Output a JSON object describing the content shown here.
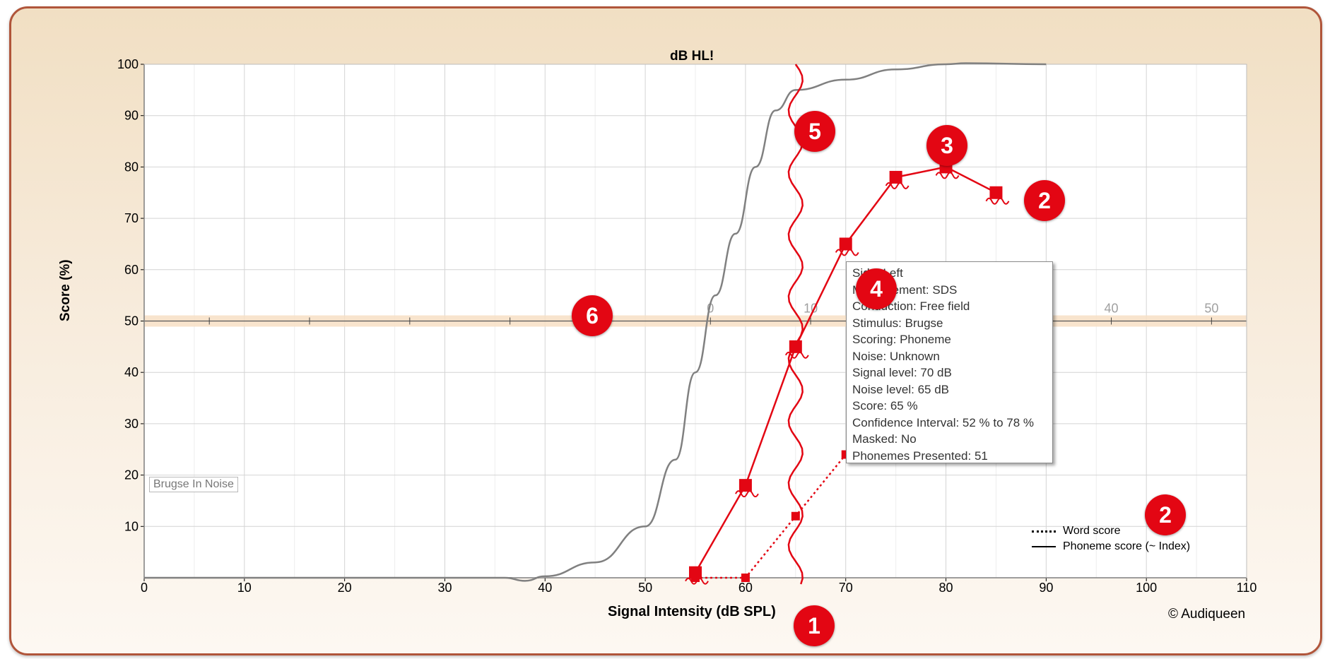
{
  "chart_data": {
    "type": "line",
    "title": "dB HL!",
    "xlabel": "Signal Intensity (dB SPL)",
    "ylabel": "Score (%)",
    "xlim": [
      0,
      110
    ],
    "ylim": [
      0,
      100
    ],
    "x_ticks": [
      0,
      10,
      20,
      30,
      40,
      50,
      60,
      70,
      80,
      90,
      100,
      110
    ],
    "y_ticks": [
      10,
      20,
      30,
      40,
      50,
      60,
      70,
      80,
      90,
      100
    ],
    "grid": true,
    "secondary_axis": {
      "at_score": 50,
      "ticks": [
        {
          "x": 56.5,
          "label": "0"
        },
        {
          "x": 66.5,
          "label": "10"
        },
        {
          "x": 96.5,
          "label": "40"
        },
        {
          "x": 106.5,
          "label": "50"
        }
      ],
      "unlabeled_ticks": [
        6.5,
        16.5,
        26.5,
        36.5
      ]
    },
    "reference_curve": {
      "color": "#808080",
      "points": [
        [
          0,
          0
        ],
        [
          36,
          0
        ],
        [
          38,
          -0.6
        ],
        [
          40,
          0.3
        ],
        [
          45,
          3
        ],
        [
          50,
          10
        ],
        [
          53,
          23
        ],
        [
          55,
          40
        ],
        [
          57,
          55
        ],
        [
          59,
          67
        ],
        [
          61,
          80
        ],
        [
          63,
          91
        ],
        [
          65,
          95
        ],
        [
          70,
          97
        ],
        [
          75,
          99
        ],
        [
          80,
          100
        ],
        [
          82,
          100.2
        ],
        [
          90,
          100
        ]
      ]
    },
    "threshold_line": {
      "x": 65,
      "color": "#e30613"
    },
    "series": [
      {
        "name": "Phoneme score (~ Index)",
        "style": "solid",
        "color": "#e30613",
        "x": [
          55,
          60,
          65,
          70,
          75,
          80,
          85
        ],
        "y": [
          1,
          18,
          45,
          65,
          78,
          80,
          75
        ]
      },
      {
        "name": "Word score",
        "style": "dotted",
        "color": "#e30613",
        "x": [
          55,
          60,
          65,
          70
        ],
        "y": [
          0,
          0,
          12,
          24
        ]
      }
    ]
  },
  "tag_label": "Brugse In Noise",
  "copyright": "© Audiqueen",
  "legend": {
    "word": "Word score",
    "phoneme": "Phoneme score (~ Index)"
  },
  "tooltip": [
    "Side: Left",
    "Measurement: SDS",
    "Conduction: Free field",
    "Stimulus: Brugse",
    "Scoring: Phoneme",
    "Noise: Unknown",
    "Signal level: 70 dB",
    "Noise level: 65 dB",
    "Score: 65 %",
    "Confidence Interval: 52 % to 78 %",
    "Masked: No",
    "Phonemes Presented: 51"
  ],
  "callouts": [
    "1",
    "2",
    "2",
    "3",
    "4",
    "5",
    "6"
  ]
}
